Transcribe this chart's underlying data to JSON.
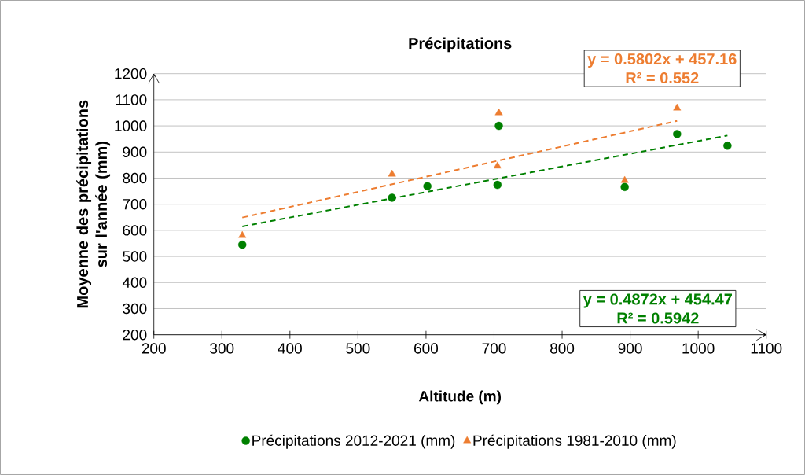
{
  "chart_data": {
    "type": "scatter",
    "title": "Précipitations",
    "xlabel": "Altitude (m)",
    "ylabel": "Moyenne des précipitations sur l'année (mm)",
    "xlim": [
      200,
      1100
    ],
    "xticks": [
      200,
      300,
      400,
      500,
      600,
      700,
      800,
      900,
      1000,
      1100
    ],
    "ylim": [
      200,
      1200
    ],
    "yticks": [
      200,
      300,
      400,
      500,
      600,
      700,
      800,
      900,
      1000,
      1100,
      1200
    ],
    "grid": "y",
    "legend": "bottom",
    "series": [
      {
        "name": "Précipitations 2012-2021 (mm)",
        "color": "#008000",
        "marker": "circle",
        "x": [
          330,
          550,
          602,
          707,
          705,
          892,
          969,
          1043
        ],
        "values": [
          545,
          725,
          769,
          1000,
          774,
          766,
          969,
          924
        ]
      },
      {
        "name": "Précipitations 1981-2010 (mm)",
        "color": "#ed7d31",
        "marker": "triangle",
        "x": [
          330,
          550,
          707,
          705,
          892,
          969
        ],
        "values": [
          580,
          815,
          1050,
          846,
          791,
          1068
        ]
      },
      {
        "type": "line",
        "color": "#008000",
        "line_style": "dashed",
        "marker": "none",
        "x": [
          330,
          1043
        ],
        "values": [
          615,
          963
        ]
      },
      {
        "type": "line",
        "color": "#ed7d31",
        "line_style": "dashed",
        "marker": "none",
        "x": [
          330,
          969
        ],
        "values": [
          649,
          1019
        ]
      }
    ],
    "annotations": [
      "y = 0.5802x + 457.16",
      "R² = 0.552",
      "y = 0.4872x + 454.47",
      "R² = 0.5942"
    ]
  }
}
